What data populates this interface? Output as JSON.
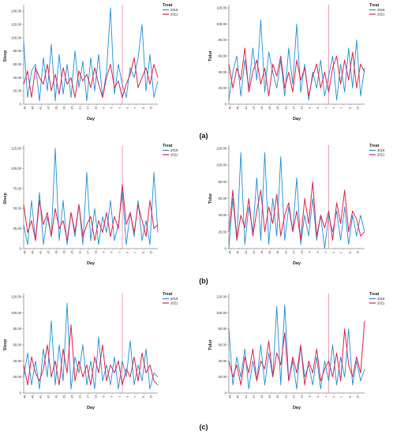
{
  "legend_title": "Treat",
  "series_names": [
    "2019",
    "2021"
  ],
  "colors": {
    "s2019": "#1f8fd6",
    "s2021": "#e0204a",
    "vline": "#e88aa0",
    "axis": "#888888"
  },
  "x_label": "Day",
  "x_tick_labels": [
    "-49",
    "-45",
    "-41",
    "-37",
    "-33",
    "-29",
    "-25",
    "-21",
    "-17",
    "-13",
    "-9",
    "-5",
    "-1",
    "3",
    "7",
    "11",
    "15"
  ],
  "row_labels": [
    "(a)",
    "(b)",
    "(c)"
  ],
  "chart_data": [
    {
      "id": "a-left",
      "type": "line",
      "ylabel": "Sleep",
      "ylim": [
        0,
        145
      ],
      "yticks": [
        0,
        20,
        40,
        60,
        80,
        100,
        120,
        140
      ],
      "ytick_labels": [
        "0",
        "20.00",
        "40.00",
        "60.00",
        "80.00",
        "100.00",
        "120.00",
        "140.00"
      ],
      "x": [
        -50,
        -48,
        -46,
        -44,
        -42,
        -40,
        -38,
        -36,
        -34,
        -32,
        -30,
        -28,
        -26,
        -24,
        -22,
        -20,
        -18,
        -16,
        -14,
        -12,
        -10,
        -8,
        -6,
        -4,
        -2,
        0,
        2,
        4,
        6,
        8,
        10,
        12,
        14,
        16,
        18
      ],
      "series": [
        {
          "name": "2019",
          "values": [
            95,
            10,
            50,
            60,
            5,
            70,
            20,
            90,
            5,
            75,
            15,
            60,
            10,
            80,
            25,
            65,
            5,
            70,
            20,
            75,
            10,
            50,
            145,
            15,
            60,
            30,
            10,
            55,
            40,
            70,
            120,
            20,
            75,
            10,
            35
          ]
        },
        {
          "name": "2021",
          "values": [
            30,
            50,
            10,
            55,
            40,
            30,
            60,
            20,
            45,
            15,
            55,
            30,
            40,
            10,
            50,
            35,
            45,
            25,
            55,
            30,
            10,
            40,
            60,
            25,
            35,
            10,
            30,
            45,
            70,
            25,
            40,
            55,
            30,
            60,
            40
          ]
        }
      ]
    },
    {
      "id": "a-right",
      "type": "line",
      "ylabel": "Tidur",
      "ylim": [
        0,
        120
      ],
      "yticks": [
        0,
        20,
        40,
        60,
        80,
        100,
        120
      ],
      "ytick_labels": [
        "0",
        "20.00",
        "40.00",
        "60.00",
        "80.00",
        "100.00",
        "120.00"
      ],
      "x": [
        -50,
        -48,
        -46,
        -44,
        -42,
        -40,
        -38,
        -36,
        -34,
        -32,
        -30,
        -28,
        -26,
        -24,
        -22,
        -20,
        -18,
        -16,
        -14,
        -12,
        -10,
        -8,
        -6,
        -4,
        -2,
        0,
        2,
        4,
        6,
        8,
        10,
        12,
        14,
        16,
        18
      ],
      "series": [
        {
          "name": "2019",
          "values": [
            5,
            40,
            60,
            10,
            55,
            20,
            70,
            30,
            105,
            15,
            65,
            40,
            20,
            55,
            10,
            70,
            25,
            100,
            15,
            50,
            5,
            40,
            20,
            55,
            10,
            35,
            60,
            5,
            50,
            15,
            70,
            20,
            80,
            10,
            45
          ]
        },
        {
          "name": "2021",
          "values": [
            50,
            20,
            45,
            30,
            70,
            15,
            40,
            55,
            25,
            45,
            10,
            50,
            35,
            60,
            20,
            40,
            15,
            55,
            30,
            45,
            10,
            35,
            50,
            20,
            40,
            15,
            45,
            60,
            25,
            55,
            30,
            65,
            20,
            50,
            40
          ]
        }
      ]
    },
    {
      "id": "b-left",
      "type": "line",
      "ylabel": "Sleep",
      "ylim": [
        0,
        125
      ],
      "yticks": [
        0,
        25,
        50,
        75,
        100,
        125
      ],
      "ytick_labels": [
        "0",
        "25.00",
        "50.00",
        "75.00",
        "100.00",
        "125.00"
      ],
      "x": [
        -50,
        -48,
        -46,
        -44,
        -42,
        -40,
        -38,
        -36,
        -34,
        -32,
        -30,
        -28,
        -26,
        -24,
        -22,
        -20,
        -18,
        -16,
        -14,
        -12,
        -10,
        -8,
        -6,
        -4,
        -2,
        0,
        2,
        4,
        6,
        8,
        10,
        12,
        14,
        16,
        18
      ],
      "series": [
        {
          "name": "2019",
          "values": [
            30,
            5,
            60,
            10,
            70,
            5,
            40,
            15,
            125,
            10,
            60,
            5,
            45,
            15,
            55,
            5,
            95,
            10,
            50,
            5,
            40,
            20,
            60,
            10,
            30,
            70,
            5,
            45,
            15,
            60,
            10,
            35,
            5,
            95,
            20
          ]
        },
        {
          "name": "2021",
          "values": [
            55,
            20,
            35,
            10,
            60,
            30,
            45,
            15,
            50,
            25,
            35,
            10,
            45,
            20,
            55,
            15,
            30,
            40,
            10,
            35,
            20,
            45,
            15,
            40,
            25,
            80,
            30,
            45,
            20,
            55,
            35,
            15,
            60,
            25,
            30
          ]
        }
      ]
    },
    {
      "id": "b-right",
      "type": "line",
      "ylabel": "Tidur",
      "ylim": [
        0,
        120
      ],
      "yticks": [
        0,
        20,
        40,
        60,
        80,
        100,
        120
      ],
      "ytick_labels": [
        "0",
        "20.00",
        "40.00",
        "60.00",
        "80.00",
        "100.00",
        "120.00"
      ],
      "x": [
        -50,
        -48,
        -46,
        -44,
        -42,
        -40,
        -38,
        -36,
        -34,
        -32,
        -30,
        -28,
        -26,
        -24,
        -22,
        -20,
        -18,
        -16,
        -14,
        -12,
        -10,
        -8,
        -6,
        -4,
        -2,
        0,
        2,
        4,
        6,
        8,
        10,
        12,
        14,
        16,
        18
      ],
      "series": [
        {
          "name": "2019",
          "values": [
            0,
            60,
            10,
            115,
            5,
            50,
            20,
            85,
            10,
            115,
            5,
            60,
            15,
            110,
            10,
            50,
            20,
            85,
            5,
            40,
            15,
            60,
            10,
            40,
            0,
            40,
            20,
            45,
            10,
            50,
            5,
            40,
            15,
            40,
            20
          ]
        },
        {
          "name": "2021",
          "values": [
            20,
            70,
            10,
            40,
            25,
            60,
            15,
            45,
            70,
            20,
            50,
            30,
            65,
            15,
            40,
            55,
            20,
            45,
            10,
            60,
            30,
            80,
            15,
            40,
            25,
            45,
            10,
            55,
            30,
            70,
            20,
            45,
            35,
            15,
            20
          ]
        }
      ]
    },
    {
      "id": "c-left",
      "type": "line",
      "ylabel": "Sleep",
      "ylim": [
        0,
        120
      ],
      "yticks": [
        0,
        20,
        40,
        60,
        80,
        100,
        120
      ],
      "ytick_labels": [
        "0",
        "20.00",
        "40.00",
        "60.00",
        "80.00",
        "100.00",
        "120.00"
      ],
      "x": [
        -50,
        -48,
        -46,
        -44,
        -42,
        -40,
        -38,
        -36,
        -34,
        -32,
        -30,
        -28,
        -26,
        -24,
        -22,
        -20,
        -18,
        -16,
        -14,
        -12,
        -10,
        -8,
        -6,
        -4,
        -2,
        0,
        2,
        4,
        6,
        8,
        10,
        12,
        14,
        16,
        18
      ],
      "series": [
        {
          "name": "2019",
          "values": [
            20,
            50,
            10,
            40,
            5,
            55,
            20,
            90,
            10,
            60,
            15,
            112,
            5,
            45,
            25,
            60,
            10,
            40,
            5,
            70,
            15,
            35,
            10,
            45,
            5,
            40,
            20,
            65,
            10,
            35,
            15,
            55,
            5,
            25,
            20
          ]
        },
        {
          "name": "2021",
          "values": [
            35,
            10,
            45,
            25,
            15,
            30,
            60,
            20,
            40,
            10,
            55,
            25,
            85,
            15,
            40,
            20,
            35,
            10,
            45,
            25,
            60,
            15,
            35,
            25,
            40,
            10,
            30,
            20,
            45,
            15,
            50,
            25,
            35,
            15,
            10
          ]
        }
      ]
    },
    {
      "id": "c-right",
      "type": "line",
      "ylabel": "Tidur",
      "ylim": [
        0,
        120
      ],
      "yticks": [
        0,
        20,
        40,
        60,
        80,
        100,
        120
      ],
      "ytick_labels": [
        "0",
        "20.00",
        "40.00",
        "60.00",
        "80.00",
        "100.00",
        "120.00"
      ],
      "x": [
        -50,
        -48,
        -46,
        -44,
        -42,
        -40,
        -38,
        -36,
        -34,
        -32,
        -30,
        -28,
        -26,
        -24,
        -22,
        -20,
        -18,
        -16,
        -14,
        -12,
        -10,
        -8,
        -6,
        -4,
        -2,
        0,
        2,
        4,
        6,
        8,
        10,
        12,
        14,
        16,
        18
      ],
      "series": [
        {
          "name": "2019",
          "values": [
            80,
            10,
            45,
            20,
            55,
            5,
            40,
            15,
            60,
            10,
            50,
            20,
            108,
            10,
            110,
            15,
            40,
            5,
            60,
            20,
            35,
            10,
            45,
            5,
            40,
            15,
            60,
            10,
            45,
            20,
            80,
            10,
            40,
            15,
            30
          ]
        },
        {
          "name": "2021",
          "values": [
            40,
            20,
            35,
            10,
            45,
            25,
            55,
            15,
            40,
            30,
            65,
            20,
            50,
            35,
            75,
            15,
            45,
            25,
            60,
            10,
            40,
            25,
            55,
            15,
            30,
            40,
            20,
            50,
            15,
            80,
            35,
            20,
            45,
            25,
            90
          ]
        }
      ]
    }
  ]
}
